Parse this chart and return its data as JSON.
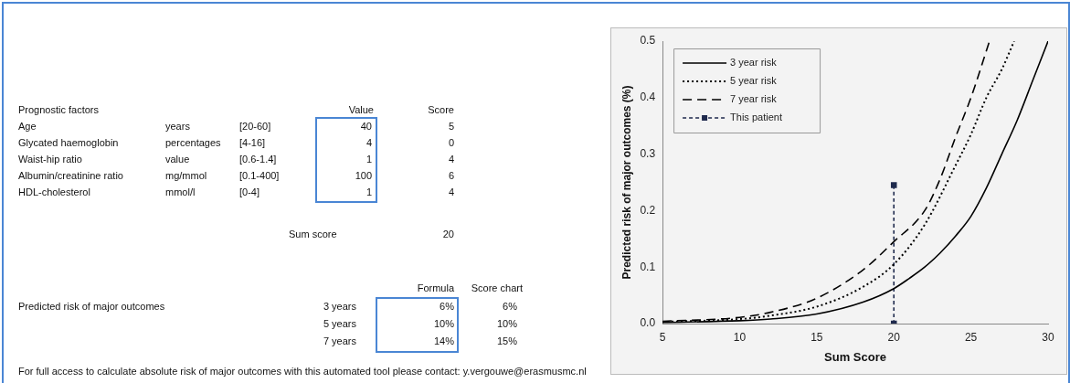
{
  "chart_data": [
    {
      "type": "other",
      "annotations": [
        "Prognostic factors",
        "Value",
        "Score",
        "Age",
        "years",
        "[20-60]",
        "40",
        "5",
        "Glycated haemoglobin",
        "percentages",
        "[4-16]",
        "4",
        "0",
        "Waist-hip ratio",
        "value",
        "[0.6-1.4]",
        "1",
        "4",
        "Albumin/creatinine ratio",
        "mg/mmol",
        "[0.1-400]",
        "100",
        "6",
        "HDL-cholesterol",
        "mmol/l",
        "[0-4]",
        "1",
        "4",
        "Sum score",
        "20",
        "Formula",
        "Score chart",
        "Predicted risk of major outcomes",
        "3 years",
        "6%",
        "6%",
        "5 years",
        "10%",
        "10%",
        "7 years",
        "14%",
        "15%",
        "For full access to calculate absolute risk of major outcomes with this automated tool please contact: y.vergouwe@erasmusmc.nl"
      ]
    },
    {
      "type": "line",
      "xlabel": "Sum Score",
      "ylabel": "Predicted risk of major outcomes (%)",
      "xlim": [
        5,
        30
      ],
      "xticks": [
        5,
        10,
        15,
        20,
        25,
        30
      ],
      "ylim": [
        0,
        0.5
      ],
      "yticks": [
        {
          "value": 0,
          "label": "0.0"
        },
        {
          "value": 0.1,
          "label": "0.1"
        },
        {
          "value": 0.2,
          "label": "0.2"
        },
        {
          "value": 0.3,
          "label": "0.3"
        },
        {
          "value": 0.4,
          "label": "0.4"
        },
        {
          "value": 0.5,
          "label": "0.5"
        }
      ],
      "grid": false,
      "legend": "top left",
      "series": [
        {
          "name": "3 year risk",
          "color": "#000000",
          "line_style": "solid",
          "marker": "none",
          "x": [
            5,
            10,
            12,
            15,
            18,
            20,
            21,
            22,
            23,
            24,
            25,
            26,
            27,
            28,
            29,
            30
          ],
          "values": [
            0.002,
            0.005,
            0.008,
            0.017,
            0.038,
            0.062,
            0.08,
            0.1,
            0.125,
            0.155,
            0.19,
            0.24,
            0.3,
            0.36,
            0.43,
            0.5
          ]
        },
        {
          "name": "5 year risk",
          "color": "#000000",
          "line_style": "dotted",
          "marker": "none",
          "x": [
            5,
            10,
            12,
            15,
            18,
            20,
            22,
            24,
            25,
            26,
            27,
            27.8
          ],
          "values": [
            0.003,
            0.008,
            0.014,
            0.03,
            0.065,
            0.105,
            0.175,
            0.28,
            0.335,
            0.4,
            0.45,
            0.5
          ]
        },
        {
          "name": "7 year risk",
          "color": "#000000",
          "line_style": "dashed",
          "marker": "none",
          "x": [
            5,
            10,
            12,
            15,
            18,
            20,
            22,
            23,
            24,
            25,
            26.2
          ],
          "values": [
            0.004,
            0.011,
            0.02,
            0.045,
            0.095,
            0.145,
            0.2,
            0.256,
            0.33,
            0.4,
            0.5
          ]
        },
        {
          "name": "This patient",
          "color": "#1f2a4d",
          "line_style": "dashed",
          "marker": "square",
          "x": [
            20,
            20
          ],
          "values": [
            0,
            0.245
          ]
        }
      ]
    }
  ]
}
